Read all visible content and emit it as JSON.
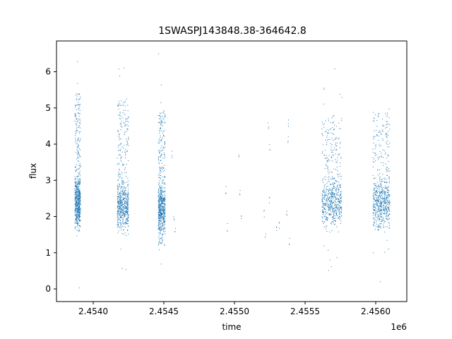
{
  "chart_data": {
    "type": "scatter",
    "title": "1SWASPJ143848.38-364642.8",
    "xlabel": "time",
    "ylabel": "flux",
    "x_offset_label": "1e6",
    "xlim": [
      2453740,
      2456220
    ],
    "ylim": [
      -0.35,
      6.85
    ],
    "x_ticks": [
      2454000,
      2454500,
      2455000,
      2455500,
      2456000
    ],
    "x_tick_labels": [
      "2.4540",
      "2.4545",
      "2.4550",
      "2.4555",
      "2.4560"
    ],
    "y_ticks": [
      0,
      1,
      2,
      3,
      4,
      5,
      6
    ],
    "y_tick_labels": [
      "0",
      "1",
      "2",
      "3",
      "4",
      "5",
      "6"
    ],
    "grid": false,
    "point_color": "#1f77b4",
    "series": [
      {
        "segments": [
          {
            "x_range": [
              2453870,
              2453910
            ],
            "flux_range": [
              1.6,
              5.4
            ],
            "flux_center": 2.4,
            "flux_min": 0.0,
            "flux_max": 6.5
          },
          {
            "x_range": [
              2454170,
              2454250
            ],
            "flux_range": [
              1.6,
              5.2
            ],
            "flux_center": 2.3,
            "flux_min": 0.2,
            "flux_max": 6.6
          },
          {
            "x_range": [
              2454460,
              2454510
            ],
            "flux_range": [
              1.2,
              4.9
            ],
            "flux_center": 2.2,
            "flux_min": 0.4,
            "flux_max": 6.5
          },
          {
            "x_range": [
              2455620,
              2455760
            ],
            "flux_range": [
              1.8,
              4.8
            ],
            "flux_center": 2.4,
            "flux_min": 0.4,
            "flux_max": 6.3
          },
          {
            "x_range": [
              2455980,
              2456100
            ],
            "flux_range": [
              1.6,
              4.9
            ],
            "flux_center": 2.4,
            "flux_min": 0.0,
            "flux_max": 5.0
          }
        ],
        "sparse_points": [
          [
            2454560,
            3.7
          ],
          [
            2454570,
            2.0
          ],
          [
            2454580,
            1.6
          ],
          [
            2454940,
            2.7
          ],
          [
            2454950,
            1.7
          ],
          [
            2455030,
            3.6
          ],
          [
            2455040,
            2.6
          ],
          [
            2455050,
            2.0
          ],
          [
            2455210,
            2.1
          ],
          [
            2455220,
            1.4
          ],
          [
            2455240,
            4.5
          ],
          [
            2455250,
            3.9
          ],
          [
            2455250,
            2.4
          ],
          [
            2455300,
            1.6
          ],
          [
            2455320,
            1.8
          ],
          [
            2455380,
            4.6
          ],
          [
            2455380,
            4.1
          ],
          [
            2455390,
            1.3
          ],
          [
            2455370,
            2.1
          ]
        ]
      }
    ]
  }
}
